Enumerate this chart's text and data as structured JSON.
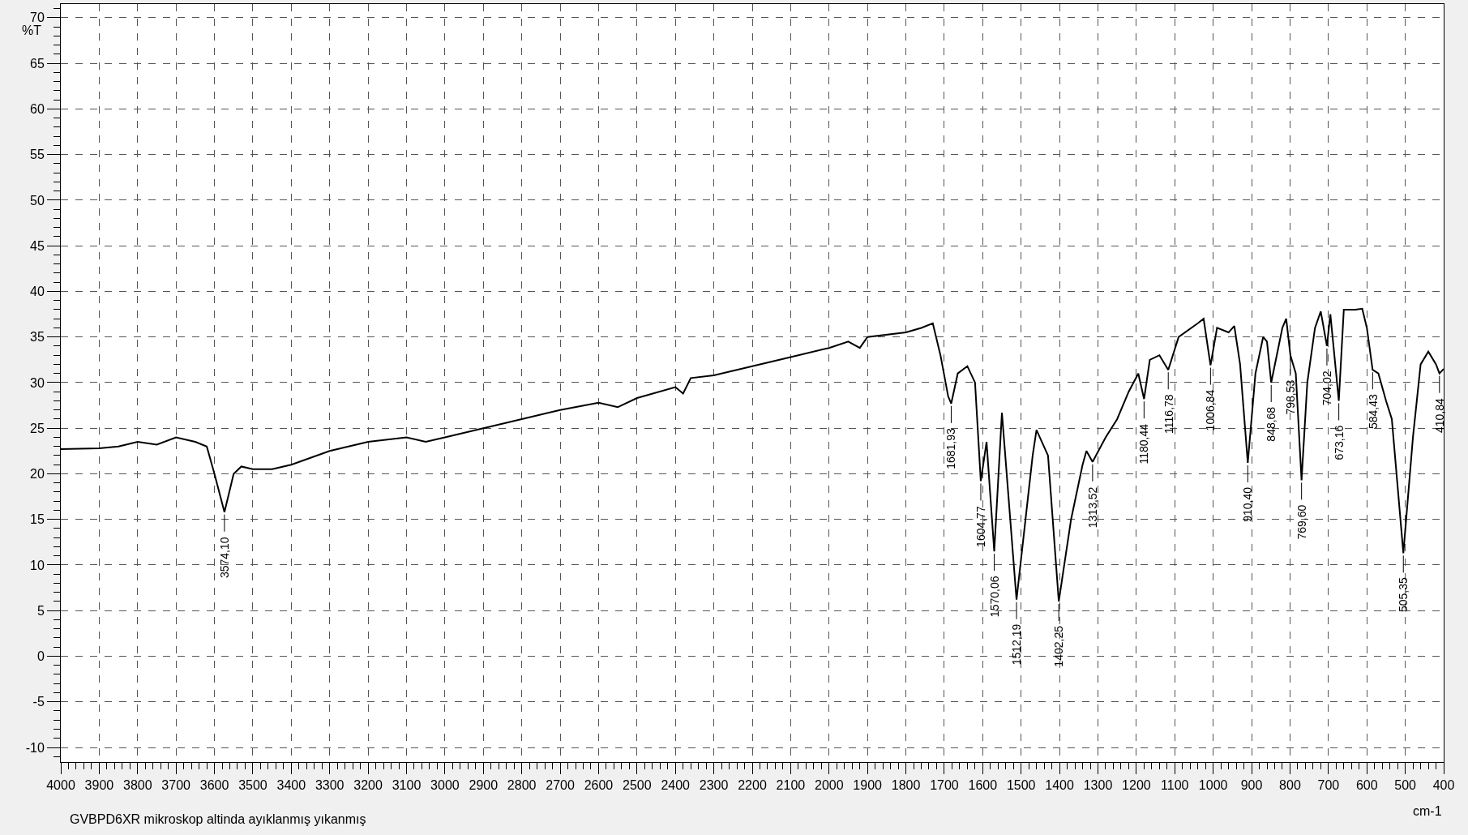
{
  "chart_data": {
    "type": "line",
    "xlabel": "cm-1",
    "ylabel": "%T",
    "x": [
      4000,
      3900,
      3850,
      3800,
      3750,
      3700,
      3650,
      3620,
      3600,
      3574,
      3550,
      3530,
      3500,
      3450,
      3400,
      3300,
      3200,
      3100,
      3050,
      3000,
      2900,
      2800,
      2700,
      2600,
      2550,
      2500,
      2400,
      2380,
      2360,
      2300,
      2200,
      2100,
      2000,
      1950,
      1920,
      1900,
      1800,
      1760,
      1730,
      1710,
      1690,
      1682,
      1665,
      1640,
      1620,
      1605,
      1590,
      1570,
      1550,
      1512,
      1470,
      1460,
      1430,
      1402,
      1370,
      1340,
      1330,
      1314,
      1280,
      1250,
      1220,
      1195,
      1180,
      1165,
      1140,
      1117,
      1090,
      1040,
      1025,
      1007,
      990,
      960,
      945,
      930,
      910,
      890,
      870,
      860,
      849,
      820,
      810,
      799,
      785,
      770,
      755,
      735,
      720,
      704,
      695,
      673,
      660,
      630,
      612,
      600,
      585,
      570,
      550,
      535,
      505,
      480,
      460,
      440,
      420,
      411,
      400
    ],
    "series": [
      {
        "color": "#000000",
        "values": [
          22.7,
          22.8,
          23.0,
          23.5,
          23.2,
          24.0,
          23.5,
          23.0,
          20.0,
          15.8,
          20.0,
          20.8,
          20.5,
          20.5,
          21.0,
          22.5,
          23.5,
          24.0,
          23.5,
          24.0,
          25.0,
          26.0,
          27.0,
          27.8,
          27.3,
          28.3,
          29.5,
          28.8,
          30.5,
          30.8,
          31.8,
          32.8,
          33.8,
          34.5,
          33.8,
          35.0,
          35.5,
          36.0,
          36.5,
          33.0,
          28.5,
          27.7,
          31.0,
          31.8,
          30.0,
          19.2,
          23.5,
          11.5,
          26.7,
          6.2,
          22.0,
          24.8,
          22.0,
          6.0,
          15.0,
          21.0,
          22.5,
          21.3,
          24.0,
          26.0,
          29.0,
          31.0,
          28.2,
          32.5,
          33.0,
          31.4,
          35.0,
          36.5,
          37.0,
          31.9,
          36.0,
          35.5,
          36.2,
          32.0,
          21.2,
          31.0,
          35.0,
          34.5,
          30.0,
          36.0,
          37.0,
          33.0,
          31.0,
          19.3,
          30.0,
          36.0,
          37.8,
          34.0,
          37.5,
          28.0,
          38.0,
          38.0,
          38.1,
          36.0,
          31.4,
          31.0,
          28.0,
          26.0,
          11.3,
          24.0,
          32.0,
          33.4,
          32.0,
          31.0,
          31.5
        ]
      }
    ],
    "xlim": [
      4000,
      400
    ],
    "xticks": [
      4000,
      3900,
      3800,
      3700,
      3600,
      3500,
      3400,
      3300,
      3200,
      3100,
      3000,
      2900,
      2800,
      2700,
      2600,
      2500,
      2400,
      2300,
      2200,
      2100,
      2000,
      1900,
      1800,
      1700,
      1600,
      1500,
      1400,
      1300,
      1200,
      1100,
      1000,
      900,
      800,
      700,
      600,
      500,
      400
    ],
    "ylim": [
      -11.6,
      71.5
    ],
    "yticks": [
      -10,
      -5,
      0,
      5,
      10,
      15,
      20,
      25,
      30,
      35,
      40,
      45,
      50,
      55,
      60,
      65,
      70
    ],
    "grid": true,
    "marker": "none",
    "line_style": "solid",
    "annotations": [
      {
        "text": "3574,10",
        "x": 3574,
        "y": 15.8
      },
      {
        "text": "1681,93",
        "x": 1682,
        "y": 27.7
      },
      {
        "text": "1604,77",
        "x": 1605,
        "y": 19.2
      },
      {
        "text": "1570,06",
        "x": 1570,
        "y": 11.5
      },
      {
        "text": "1512,19",
        "x": 1512,
        "y": 6.2
      },
      {
        "text": "1402,25",
        "x": 1402,
        "y": 6.0
      },
      {
        "text": "1313,52",
        "x": 1314,
        "y": 21.3
      },
      {
        "text": "1180,44",
        "x": 1180,
        "y": 28.2
      },
      {
        "text": "1116,78",
        "x": 1117,
        "y": 31.4
      },
      {
        "text": "1006,84",
        "x": 1007,
        "y": 31.9
      },
      {
        "text": "910,40",
        "x": 910,
        "y": 21.2
      },
      {
        "text": "848,68",
        "x": 849,
        "y": 30.0
      },
      {
        "text": "798,53",
        "x": 799,
        "y": 33.0
      },
      {
        "text": "769,60",
        "x": 770,
        "y": 19.3
      },
      {
        "text": "704,02",
        "x": 704,
        "y": 34.0
      },
      {
        "text": "673,16",
        "x": 673,
        "y": 28.0
      },
      {
        "text": "584,43",
        "x": 585,
        "y": 31.4
      },
      {
        "text": "505,35",
        "x": 505,
        "y": 11.3
      },
      {
        "text": "410,84",
        "x": 411,
        "y": 31.0
      },
      "GVBPD6XR mikroskop altinda ayıklanmış yıkanmış"
    ]
  }
}
